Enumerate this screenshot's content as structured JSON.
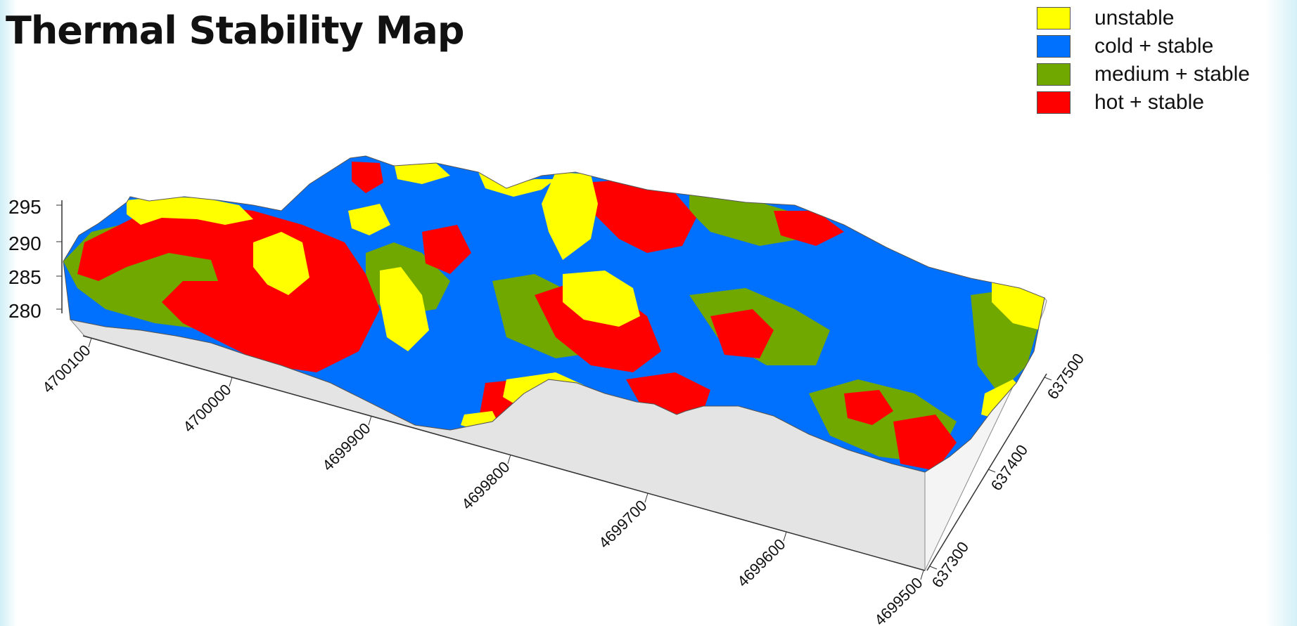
{
  "title": "Thermal Stability Map",
  "legend": [
    {
      "label": "unstable",
      "color": "#ffff00"
    },
    {
      "label": "cold + stable",
      "color": "#0070ff"
    },
    {
      "label": "medium + stable",
      "color": "#70a800"
    },
    {
      "label": "hot + stable",
      "color": "#ff0000"
    }
  ],
  "axes": {
    "z_ticks": [
      "295",
      "290",
      "285",
      "280"
    ],
    "northing_ticks": [
      "4700100",
      "4700000",
      "4699900",
      "4699800",
      "4699700",
      "4699600",
      "4699500"
    ],
    "easting_ticks": [
      "637300",
      "637400",
      "637500"
    ]
  },
  "colors": {
    "unstable": "#ffff00",
    "cold": "#0070ff",
    "medium": "#70a800",
    "hot": "#ff0000",
    "block_front": "#e4e4e4",
    "block_side": "#f4f4f4"
  }
}
